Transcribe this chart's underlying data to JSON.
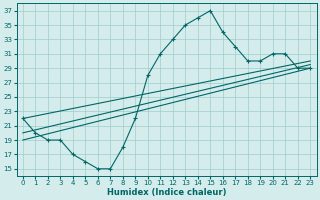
{
  "bg_color": "#d4ecec",
  "grid_color": "#a0cccc",
  "line_color": "#006666",
  "xlabel": "Humidex (Indice chaleur)",
  "xlim": [
    -0.5,
    23.5
  ],
  "ylim": [
    14,
    38
  ],
  "xticks": [
    0,
    1,
    2,
    3,
    4,
    5,
    6,
    7,
    8,
    9,
    10,
    11,
    12,
    13,
    14,
    15,
    16,
    17,
    18,
    19,
    20,
    21,
    22,
    23
  ],
  "yticks": [
    15,
    17,
    19,
    21,
    23,
    25,
    27,
    29,
    31,
    33,
    35,
    37
  ],
  "curve_x": [
    0,
    1,
    2,
    3,
    4,
    5,
    6,
    7,
    8,
    9,
    10,
    11,
    12,
    13,
    14,
    15,
    16,
    17,
    18,
    19,
    20,
    21,
    22,
    23
  ],
  "curve_y": [
    22,
    20,
    19,
    19,
    17,
    16,
    15,
    15,
    18,
    22,
    28,
    31,
    33,
    35,
    36,
    37,
    34,
    32,
    30,
    30,
    31,
    31,
    29,
    29
  ],
  "line1_x": [
    0,
    23
  ],
  "line1_y": [
    19,
    29
  ],
  "line2_x": [
    0,
    23
  ],
  "line2_y": [
    20,
    29.5
  ],
  "line3_x": [
    0,
    23
  ],
  "line3_y": [
    22,
    30
  ],
  "tick_fontsize": 5,
  "xlabel_fontsize": 6
}
